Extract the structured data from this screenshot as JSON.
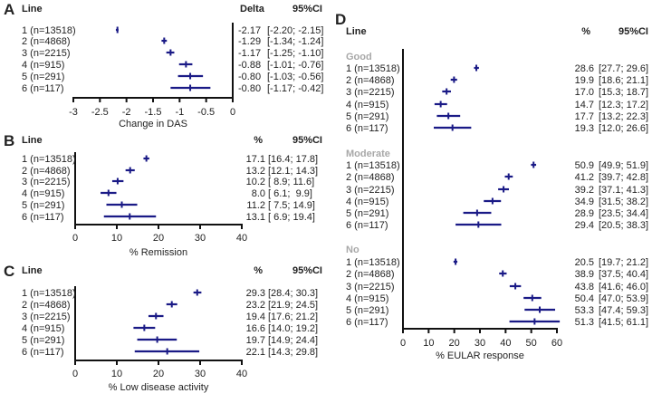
{
  "colors": {
    "marker": "#1a1a86",
    "axis": "#111111",
    "group_label": "#a8a8a8"
  },
  "chart_data": [
    {
      "panel": "A",
      "type": "forest",
      "header": {
        "line": "Line",
        "value": "Delta",
        "ci": "95%CI"
      },
      "xlabel": "Change in DAS",
      "xlim": [
        -3,
        0
      ],
      "ticks": [
        "-3",
        "-2.5",
        "-2",
        "-1.5",
        "-1",
        "-0.5",
        "0"
      ],
      "tick_values": [
        -3,
        -2.5,
        -2,
        -1.5,
        -1,
        -0.5,
        0
      ],
      "groups": [
        {
          "name": "",
          "rows": [
            {
              "label": "1 (n=13518)",
              "est": -2.17,
              "lo": -2.2,
              "hi": -2.15,
              "est_text": "-2.17",
              "ci_text": "[-2.20; -2.15]"
            },
            {
              "label": "2 (n=4868)",
              "est": -1.29,
              "lo": -1.34,
              "hi": -1.24,
              "est_text": "-1.29",
              "ci_text": "[-1.34; -1.24]"
            },
            {
              "label": "3 (n=2215)",
              "est": -1.17,
              "lo": -1.25,
              "hi": -1.1,
              "est_text": "-1.17",
              "ci_text": "[-1.25; -1.10]"
            },
            {
              "label": "4 (n=915)",
              "est": -0.88,
              "lo": -1.01,
              "hi": -0.76,
              "est_text": "-0.88",
              "ci_text": "[-1.01; -0.76]"
            },
            {
              "label": "5 (n=291)",
              "est": -0.8,
              "lo": -1.03,
              "hi": -0.56,
              "est_text": "-0.80",
              "ci_text": "[-1.03; -0.56]"
            },
            {
              "label": "6 (n=117)",
              "est": -0.8,
              "lo": -1.17,
              "hi": -0.42,
              "est_text": "-0.80",
              "ci_text": "[-1.17; -0.42]"
            }
          ]
        }
      ]
    },
    {
      "panel": "B",
      "type": "forest",
      "header": {
        "line": "Line",
        "value": "%",
        "ci": "95%CI"
      },
      "xlabel": "% Remission",
      "xlim": [
        0,
        40
      ],
      "ticks": [
        "0",
        "10",
        "20",
        "30",
        "40"
      ],
      "tick_values": [
        0,
        10,
        20,
        30,
        40
      ],
      "groups": [
        {
          "name": "",
          "rows": [
            {
              "label": "1 (n=13518)",
              "est": 17.1,
              "lo": 16.4,
              "hi": 17.8,
              "est_text": "17.1",
              "ci_text": "[16.4; 17.8]"
            },
            {
              "label": "2 (n=4868)",
              "est": 13.2,
              "lo": 12.1,
              "hi": 14.3,
              "est_text": "13.2",
              "ci_text": "[12.1; 14.3]"
            },
            {
              "label": "3 (n=2215)",
              "est": 10.2,
              "lo": 8.9,
              "hi": 11.6,
              "est_text": "10.2",
              "ci_text": "[ 8.9; 11.6]"
            },
            {
              "label": "4 (n=915)",
              "est": 8.0,
              "lo": 6.1,
              "hi": 9.9,
              "est_text": "8.0",
              "ci_text": "[ 6.1;  9.9]"
            },
            {
              "label": "5 (n=291)",
              "est": 11.2,
              "lo": 7.5,
              "hi": 14.9,
              "est_text": "11.2",
              "ci_text": "[ 7.5; 14.9]"
            },
            {
              "label": "6 (n=117)",
              "est": 13.1,
              "lo": 6.9,
              "hi": 19.4,
              "est_text": "13.1",
              "ci_text": "[ 6.9; 19.4]"
            }
          ]
        }
      ]
    },
    {
      "panel": "C",
      "type": "forest",
      "header": {
        "line": "Line",
        "value": "%",
        "ci": "95%CI"
      },
      "xlabel": "% Low disease activity",
      "xlim": [
        0,
        40
      ],
      "ticks": [
        "0",
        "10",
        "20",
        "30",
        "40"
      ],
      "tick_values": [
        0,
        10,
        20,
        30,
        40
      ],
      "groups": [
        {
          "name": "",
          "rows": [
            {
              "label": "1 (n=13518)",
              "est": 29.3,
              "lo": 28.4,
              "hi": 30.3,
              "est_text": "29.3",
              "ci_text": "[28.4; 30.3]"
            },
            {
              "label": "2 (n=4868)",
              "est": 23.2,
              "lo": 21.9,
              "hi": 24.5,
              "est_text": "23.2",
              "ci_text": "[21.9; 24.5]"
            },
            {
              "label": "3 (n=2215)",
              "est": 19.4,
              "lo": 17.6,
              "hi": 21.2,
              "est_text": "19.4",
              "ci_text": "[17.6; 21.2]"
            },
            {
              "label": "4 (n=915)",
              "est": 16.6,
              "lo": 14.0,
              "hi": 19.2,
              "est_text": "16.6",
              "ci_text": "[14.0; 19.2]"
            },
            {
              "label": "5 (n=291)",
              "est": 19.7,
              "lo": 14.9,
              "hi": 24.4,
              "est_text": "19.7",
              "ci_text": "[14.9; 24.4]"
            },
            {
              "label": "6 (n=117)",
              "est": 22.1,
              "lo": 14.3,
              "hi": 29.8,
              "est_text": "22.1",
              "ci_text": "[14.3; 29.8]"
            }
          ]
        }
      ]
    },
    {
      "panel": "D",
      "type": "forest",
      "header": {
        "line": "Line",
        "value": "%",
        "ci": "95%CI"
      },
      "xlabel": "% EULAR response",
      "xlim": [
        0,
        60
      ],
      "ticks": [
        "0",
        "10",
        "20",
        "30",
        "40",
        "50",
        "60"
      ],
      "tick_values": [
        0,
        10,
        20,
        30,
        40,
        50,
        60
      ],
      "groups": [
        {
          "name": "Good",
          "rows": [
            {
              "label": "1 (n=13518)",
              "est": 28.6,
              "lo": 27.7,
              "hi": 29.6,
              "est_text": "28.6",
              "ci_text": "[27.7; 29.6]"
            },
            {
              "label": "2 (n=4868)",
              "est": 19.9,
              "lo": 18.6,
              "hi": 21.1,
              "est_text": "19.9",
              "ci_text": "[18.6; 21.1]"
            },
            {
              "label": "3 (n=2215)",
              "est": 17.0,
              "lo": 15.3,
              "hi": 18.7,
              "est_text": "17.0",
              "ci_text": "[15.3; 18.7]"
            },
            {
              "label": "4 (n=915)",
              "est": 14.7,
              "lo": 12.3,
              "hi": 17.2,
              "est_text": "14.7",
              "ci_text": "[12.3; 17.2]"
            },
            {
              "label": "5 (n=291)",
              "est": 17.7,
              "lo": 13.2,
              "hi": 22.3,
              "est_text": "17.7",
              "ci_text": "[13.2; 22.3]"
            },
            {
              "label": "6 (n=117)",
              "est": 19.3,
              "lo": 12.0,
              "hi": 26.6,
              "est_text": "19.3",
              "ci_text": "[12.0; 26.6]"
            }
          ]
        },
        {
          "name": "Moderate",
          "rows": [
            {
              "label": "1 (n=13518)",
              "est": 50.9,
              "lo": 49.9,
              "hi": 51.9,
              "est_text": "50.9",
              "ci_text": "[49.9; 51.9]"
            },
            {
              "label": "2 (n=4868)",
              "est": 41.2,
              "lo": 39.7,
              "hi": 42.8,
              "est_text": "41.2",
              "ci_text": "[39.7; 42.8]"
            },
            {
              "label": "3 (n=2215)",
              "est": 39.2,
              "lo": 37.1,
              "hi": 41.3,
              "est_text": "39.2",
              "ci_text": "[37.1; 41.3]"
            },
            {
              "label": "4 (n=915)",
              "est": 34.9,
              "lo": 31.5,
              "hi": 38.2,
              "est_text": "34.9",
              "ci_text": "[31.5; 38.2]"
            },
            {
              "label": "5 (n=291)",
              "est": 28.9,
              "lo": 23.5,
              "hi": 34.4,
              "est_text": "28.9",
              "ci_text": "[23.5; 34.4]"
            },
            {
              "label": "6 (n=117)",
              "est": 29.4,
              "lo": 20.5,
              "hi": 38.3,
              "est_text": "29.4",
              "ci_text": "[20.5; 38.3]"
            }
          ]
        },
        {
          "name": "No",
          "rows": [
            {
              "label": "1 (n=13518)",
              "est": 20.5,
              "lo": 19.7,
              "hi": 21.2,
              "est_text": "20.5",
              "ci_text": "[19.7; 21.2]"
            },
            {
              "label": "2 (n=4868)",
              "est": 38.9,
              "lo": 37.5,
              "hi": 40.4,
              "est_text": "38.9",
              "ci_text": "[37.5; 40.4]"
            },
            {
              "label": "3 (n=2215)",
              "est": 43.8,
              "lo": 41.6,
              "hi": 46.0,
              "est_text": "43.8",
              "ci_text": "[41.6; 46.0]"
            },
            {
              "label": "4 (n=915)",
              "est": 50.4,
              "lo": 47.0,
              "hi": 53.9,
              "est_text": "50.4",
              "ci_text": "[47.0; 53.9]"
            },
            {
              "label": "5 (n=291)",
              "est": 53.3,
              "lo": 47.4,
              "hi": 59.3,
              "est_text": "53.3",
              "ci_text": "[47.4; 59.3]"
            },
            {
              "label": "6 (n=117)",
              "est": 51.3,
              "lo": 41.5,
              "hi": 61.1,
              "est_text": "51.3",
              "ci_text": "[41.5; 61.1]"
            }
          ]
        }
      ]
    }
  ]
}
